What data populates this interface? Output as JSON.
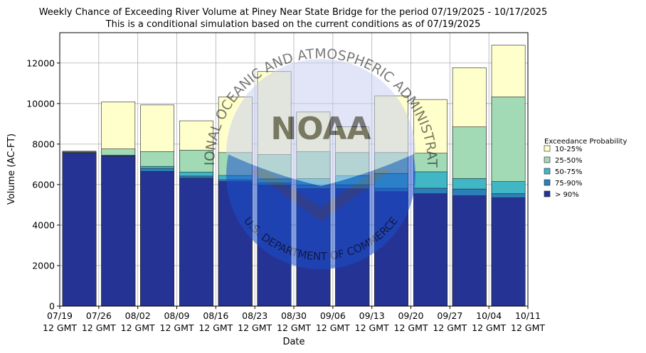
{
  "chart_data": {
    "type": "bar",
    "title": "Weekly Chance of Exceeding River Volume at Piney Near State Bridge for the period 07/19/2025 - 10/17/2025",
    "subtitle": "This is a conditional simulation based on the current conditions as of 07/19/2025",
    "xlabel": "Date",
    "ylabel": "Volume (AC-FT)",
    "ylim": [
      0,
      13500
    ],
    "yticks": [
      0,
      2000,
      4000,
      6000,
      8000,
      10000,
      12000
    ],
    "grid": true,
    "legend_placement": "right",
    "legend_title": "Exceedance Probability",
    "xtick_labels": [
      [
        "07/19",
        "12 GMT"
      ],
      [
        "07/26",
        "12 GMT"
      ],
      [
        "08/02",
        "12 GMT"
      ],
      [
        "08/09",
        "12 GMT"
      ],
      [
        "08/16",
        "12 GMT"
      ],
      [
        "08/23",
        "12 GMT"
      ],
      [
        "08/30",
        "12 GMT"
      ],
      [
        "09/06",
        "12 GMT"
      ],
      [
        "09/13",
        "12 GMT"
      ],
      [
        "09/20",
        "12 GMT"
      ],
      [
        "09/27",
        "12 GMT"
      ],
      [
        "10/04",
        "12 GMT"
      ],
      [
        "10/11",
        "12 GMT"
      ]
    ],
    "series": [
      {
        "name": "> 90%",
        "color": "#253494",
        "values": [
          7560,
          7400,
          6650,
          6320,
          6150,
          5980,
          5800,
          5800,
          5650,
          5550,
          5450,
          5350
        ]
      },
      {
        "name": "75-90%",
        "color": "#2c7fb8",
        "values": [
          7580,
          7430,
          6800,
          6420,
          6240,
          6080,
          5980,
          5990,
          5820,
          5820,
          5780,
          5550
        ]
      },
      {
        "name": "50-75%",
        "color": "#41b6c4",
        "values": [
          7590,
          7450,
          6900,
          6620,
          6450,
          6280,
          6300,
          6440,
          6550,
          6630,
          6300,
          6150
        ]
      },
      {
        "name": "25-50%",
        "color": "#a1dab4",
        "values": [
          7620,
          7760,
          7630,
          7700,
          7580,
          7480,
          7620,
          7580,
          7580,
          7550,
          8850,
          10330
        ]
      },
      {
        "name": "10-25%",
        "color": "#ffffcc",
        "values": [
          7650,
          10080,
          9930,
          9150,
          10330,
          11580,
          9580,
          8850,
          10380,
          10200,
          11770,
          12880
        ]
      }
    ]
  },
  "watermark": {
    "ring_text": "NATIONAL OCEANIC AND ATMOSPHERIC ADMINISTRATION",
    "center_text": "NOAA",
    "bottom_text": "U.S. DEPARTMENT OF COMMERCE"
  }
}
